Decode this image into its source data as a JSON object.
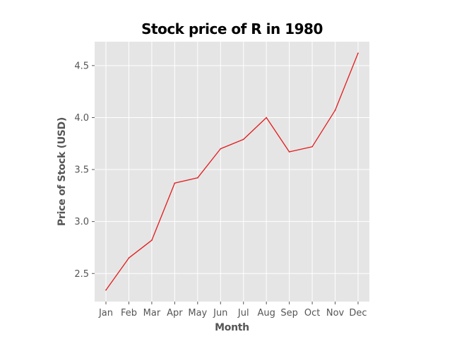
{
  "chart_data": {
    "type": "line",
    "title": "Stock price of R in 1980",
    "xlabel": "Month",
    "ylabel": "Price of Stock (USD)",
    "categories": [
      "Jan",
      "Feb",
      "Mar",
      "Apr",
      "May",
      "Jun",
      "Jul",
      "Aug",
      "Sep",
      "Oct",
      "Nov",
      "Dec"
    ],
    "series": [
      {
        "values": [
          2.34,
          2.65,
          2.82,
          3.37,
          3.42,
          3.7,
          3.79,
          4.0,
          3.67,
          3.72,
          4.07,
          4.62
        ]
      }
    ],
    "yticks": [
      2.5,
      3.0,
      3.5,
      4.0,
      4.5
    ],
    "ytick_labels": [
      "2.5",
      "3.0",
      "3.5",
      "4.0",
      "4.5"
    ],
    "ylim": [
      2.23,
      4.73
    ],
    "grid": true,
    "colors": {
      "plot_background": "#e5e5e5",
      "grid": "#ffffff",
      "line": "#e41a1c"
    }
  }
}
